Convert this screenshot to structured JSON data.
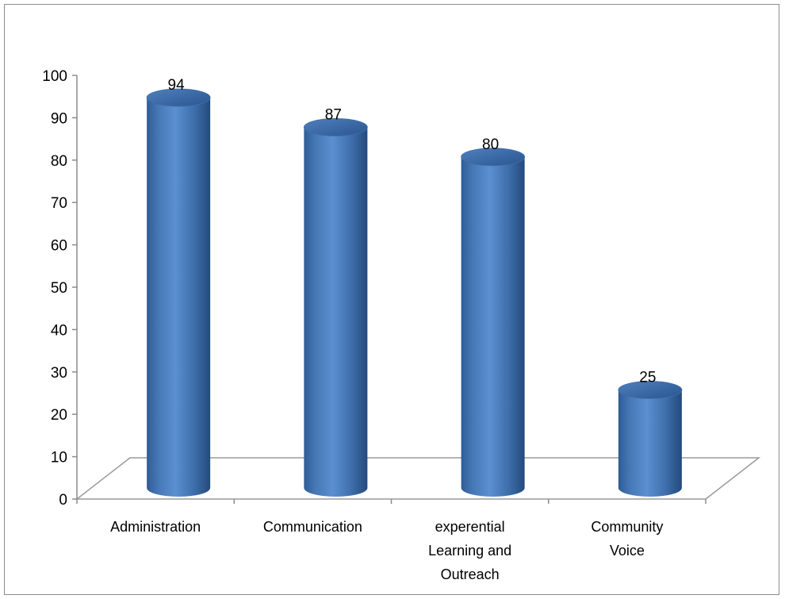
{
  "chart_data": {
    "type": "bar",
    "style": "3d-cylinder",
    "categories": [
      [
        "Administration"
      ],
      [
        "Communication"
      ],
      [
        "experential",
        "Learning and",
        "Outreach"
      ],
      [
        "Community",
        "Voice"
      ]
    ],
    "values": [
      94,
      87,
      80,
      25
    ],
    "ylim": [
      0,
      100
    ],
    "yticks": [
      0,
      10,
      20,
      30,
      40,
      50,
      60,
      70,
      80,
      90,
      100
    ],
    "bar_color": "#4f81bd",
    "data_labels": true,
    "grid": false,
    "legend": "none"
  }
}
